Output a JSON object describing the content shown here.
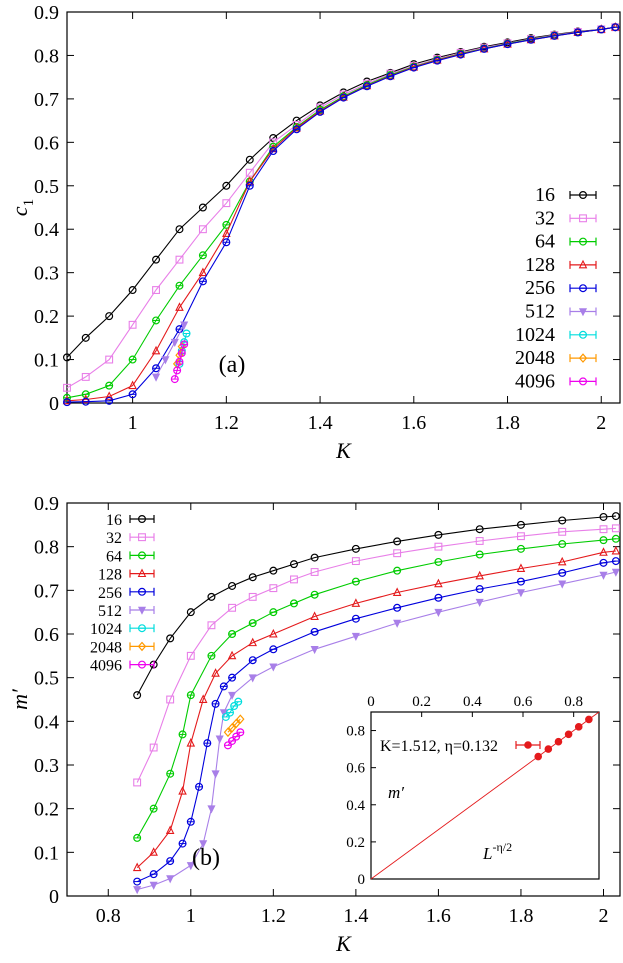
{
  "chart_data": [
    {
      "type": "line",
      "panel_label": "(a)",
      "xlabel": "K",
      "ylabel": "c",
      "ylabel_sub": "1",
      "xlim": [
        0.86,
        2.04
      ],
      "ylim": [
        0,
        0.9
      ],
      "xticks": [
        "1",
        "1.2",
        "1.4",
        "1.6",
        "1.8",
        "2"
      ],
      "xtick_values": [
        1,
        1.2,
        1.4,
        1.6,
        1.8,
        2
      ],
      "yticks": [
        "0",
        "0.1",
        "0.2",
        "0.3",
        "0.4",
        "0.5",
        "0.6",
        "0.7",
        "0.8",
        "0.9"
      ],
      "ytick_values": [
        0,
        0.1,
        0.2,
        0.3,
        0.4,
        0.5,
        0.6,
        0.7,
        0.8,
        0.9
      ],
      "legend_position": "right",
      "series": [
        {
          "name": "16",
          "color": "#000000",
          "marker": "circle",
          "x": [
            0.86,
            0.9,
            0.95,
            1.0,
            1.05,
            1.1,
            1.15,
            1.2,
            1.25,
            1.3,
            1.35,
            1.4,
            1.45,
            1.5,
            1.55,
            1.6,
            1.65,
            1.7,
            1.75,
            1.8,
            1.85,
            1.9,
            1.95,
            2.0,
            2.03
          ],
          "y": [
            0.105,
            0.15,
            0.2,
            0.26,
            0.33,
            0.4,
            0.45,
            0.5,
            0.56,
            0.61,
            0.65,
            0.685,
            0.715,
            0.74,
            0.76,
            0.78,
            0.795,
            0.808,
            0.82,
            0.83,
            0.84,
            0.848,
            0.855,
            0.86,
            0.865
          ]
        },
        {
          "name": "32",
          "color": "#e87fe8",
          "marker": "square",
          "x": [
            0.86,
            0.9,
            0.95,
            1.0,
            1.05,
            1.1,
            1.15,
            1.2,
            1.25,
            1.3,
            1.35,
            1.4,
            1.45,
            1.5,
            1.55,
            1.6,
            1.65,
            1.7,
            1.75,
            1.8,
            1.85,
            1.9,
            1.95,
            2.0,
            2.03
          ],
          "y": [
            0.035,
            0.06,
            0.1,
            0.18,
            0.26,
            0.33,
            0.4,
            0.46,
            0.53,
            0.6,
            0.64,
            0.68,
            0.71,
            0.735,
            0.758,
            0.776,
            0.792,
            0.806,
            0.818,
            0.828,
            0.838,
            0.847,
            0.854,
            0.86,
            0.865
          ]
        },
        {
          "name": "64",
          "color": "#00cc00",
          "marker": "circle-dot",
          "x": [
            0.86,
            0.9,
            0.95,
            1.0,
            1.05,
            1.1,
            1.15,
            1.2,
            1.25,
            1.3,
            1.35,
            1.4,
            1.45,
            1.5,
            1.55,
            1.6,
            1.65,
            1.7,
            1.75,
            1.8,
            1.85,
            1.9,
            1.95,
            2.0,
            2.03
          ],
          "y": [
            0.012,
            0.02,
            0.04,
            0.1,
            0.19,
            0.27,
            0.34,
            0.41,
            0.51,
            0.59,
            0.635,
            0.675,
            0.706,
            0.732,
            0.755,
            0.774,
            0.79,
            0.804,
            0.816,
            0.827,
            0.837,
            0.846,
            0.853,
            0.86,
            0.865
          ]
        },
        {
          "name": "128",
          "color": "#e41a1c",
          "marker": "triangle",
          "x": [
            0.86,
            0.9,
            0.95,
            1.0,
            1.05,
            1.1,
            1.15,
            1.2,
            1.25,
            1.3,
            1.35,
            1.4,
            1.45,
            1.5,
            1.55,
            1.6,
            1.65,
            1.7,
            1.75,
            1.8,
            1.85,
            1.9,
            1.95,
            2.0,
            2.03
          ],
          "y": [
            0.005,
            0.008,
            0.015,
            0.04,
            0.12,
            0.22,
            0.3,
            0.39,
            0.51,
            0.585,
            0.633,
            0.672,
            0.704,
            0.73,
            0.753,
            0.773,
            0.789,
            0.803,
            0.815,
            0.826,
            0.836,
            0.845,
            0.853,
            0.86,
            0.865
          ]
        },
        {
          "name": "256",
          "color": "#0000dd",
          "marker": "circle-dot",
          "x": [
            0.86,
            0.9,
            0.95,
            1.0,
            1.05,
            1.1,
            1.15,
            1.2,
            1.25,
            1.3,
            1.35,
            1.4,
            1.45,
            1.5,
            1.55,
            1.6,
            1.65,
            1.7,
            1.75,
            1.8,
            1.85,
            1.9,
            1.95,
            2.0,
            2.03
          ],
          "y": [
            0.002,
            0.003,
            0.005,
            0.02,
            0.08,
            0.17,
            0.28,
            0.37,
            0.5,
            0.58,
            0.63,
            0.67,
            0.703,
            0.729,
            0.752,
            0.772,
            0.788,
            0.802,
            0.815,
            0.826,
            0.836,
            0.845,
            0.853,
            0.86,
            0.865
          ]
        },
        {
          "name": "512",
          "color": "#a87fe8",
          "marker": "triangle-down",
          "x": [
            1.05,
            1.07,
            1.09,
            1.11
          ],
          "y": [
            0.06,
            0.1,
            0.14,
            0.18
          ]
        },
        {
          "name": "1024",
          "color": "#00dddd",
          "marker": "circle-dot",
          "x": [
            1.1,
            1.105,
            1.11,
            1.115
          ],
          "y": [
            0.09,
            0.12,
            0.14,
            0.16
          ]
        },
        {
          "name": "2048",
          "color": "#ff9900",
          "marker": "diamond",
          "x": [
            1.095,
            1.1,
            1.105
          ],
          "y": [
            0.09,
            0.11,
            0.13
          ]
        },
        {
          "name": "4096",
          "color": "#ee00ee",
          "marker": "circle-dot",
          "x": [
            1.09,
            1.095,
            1.1,
            1.105,
            1.11
          ],
          "y": [
            0.055,
            0.075,
            0.095,
            0.115,
            0.135
          ]
        }
      ]
    },
    {
      "type": "line",
      "panel_label": "(b)",
      "xlabel": "K",
      "ylabel": "m′",
      "xlim": [
        0.7,
        2.04
      ],
      "ylim": [
        0,
        0.9
      ],
      "xticks": [
        "0.8",
        "1",
        "1.2",
        "1.4",
        "1.6",
        "1.8",
        "2"
      ],
      "xtick_values": [
        0.8,
        1,
        1.2,
        1.4,
        1.6,
        1.8,
        2
      ],
      "yticks": [
        "0",
        "0.1",
        "0.2",
        "0.3",
        "0.4",
        "0.5",
        "0.6",
        "0.7",
        "0.8",
        "0.9"
      ],
      "ytick_values": [
        0,
        0.1,
        0.2,
        0.3,
        0.4,
        0.5,
        0.6,
        0.7,
        0.8,
        0.9
      ],
      "legend_position": "top-left",
      "series": [
        {
          "name": "16",
          "color": "#000000",
          "marker": "circle",
          "x": [
            0.87,
            0.91,
            0.95,
            1.0,
            1.05,
            1.1,
            1.15,
            1.2,
            1.25,
            1.3,
            1.4,
            1.5,
            1.6,
            1.7,
            1.8,
            1.9,
            2.0,
            2.03
          ],
          "y": [
            0.46,
            0.53,
            0.59,
            0.65,
            0.685,
            0.71,
            0.73,
            0.745,
            0.76,
            0.775,
            0.795,
            0.812,
            0.827,
            0.84,
            0.85,
            0.86,
            0.868,
            0.87
          ]
        },
        {
          "name": "32",
          "color": "#e87fe8",
          "marker": "square",
          "x": [
            0.87,
            0.91,
            0.95,
            1.0,
            1.05,
            1.1,
            1.15,
            1.2,
            1.25,
            1.3,
            1.4,
            1.5,
            1.6,
            1.7,
            1.8,
            1.9,
            2.0,
            2.03
          ],
          "y": [
            0.26,
            0.34,
            0.45,
            0.55,
            0.62,
            0.66,
            0.685,
            0.705,
            0.725,
            0.742,
            0.767,
            0.785,
            0.8,
            0.813,
            0.824,
            0.834,
            0.84,
            0.842
          ]
        },
        {
          "name": "64",
          "color": "#00cc00",
          "marker": "circle-dot",
          "x": [
            0.87,
            0.91,
            0.95,
            0.98,
            1.0,
            1.05,
            1.1,
            1.15,
            1.2,
            1.25,
            1.3,
            1.4,
            1.5,
            1.6,
            1.7,
            1.8,
            1.9,
            2.0,
            2.03
          ],
          "y": [
            0.133,
            0.2,
            0.28,
            0.37,
            0.46,
            0.55,
            0.6,
            0.625,
            0.65,
            0.67,
            0.69,
            0.72,
            0.745,
            0.765,
            0.782,
            0.795,
            0.806,
            0.815,
            0.818
          ]
        },
        {
          "name": "128",
          "color": "#e41a1c",
          "marker": "triangle",
          "x": [
            0.87,
            0.91,
            0.95,
            0.98,
            1.0,
            1.03,
            1.06,
            1.1,
            1.15,
            1.2,
            1.3,
            1.4,
            1.5,
            1.6,
            1.7,
            1.8,
            1.9,
            2.0,
            2.03
          ],
          "y": [
            0.065,
            0.1,
            0.15,
            0.24,
            0.35,
            0.45,
            0.51,
            0.55,
            0.58,
            0.6,
            0.64,
            0.67,
            0.695,
            0.715,
            0.733,
            0.75,
            0.765,
            0.787,
            0.79
          ]
        },
        {
          "name": "256",
          "color": "#0000dd",
          "marker": "circle-dot",
          "x": [
            0.87,
            0.91,
            0.95,
            0.98,
            1.0,
            1.02,
            1.04,
            1.06,
            1.08,
            1.1,
            1.15,
            1.2,
            1.3,
            1.4,
            1.5,
            1.6,
            1.7,
            1.8,
            1.9,
            2.0,
            2.03
          ],
          "y": [
            0.033,
            0.05,
            0.08,
            0.12,
            0.17,
            0.25,
            0.35,
            0.44,
            0.48,
            0.5,
            0.54,
            0.565,
            0.605,
            0.635,
            0.66,
            0.683,
            0.703,
            0.72,
            0.74,
            0.763,
            0.767
          ]
        },
        {
          "name": "512",
          "color": "#a87fe8",
          "marker": "triangle-down",
          "x": [
            0.87,
            0.91,
            0.95,
            1.0,
            1.03,
            1.05,
            1.06,
            1.07,
            1.08,
            1.1,
            1.15,
            1.2,
            1.3,
            1.4,
            1.5,
            1.6,
            1.7,
            1.8,
            1.9,
            2.0,
            2.03
          ],
          "y": [
            0.015,
            0.025,
            0.04,
            0.07,
            0.12,
            0.2,
            0.28,
            0.36,
            0.42,
            0.46,
            0.5,
            0.525,
            0.565,
            0.595,
            0.625,
            0.65,
            0.673,
            0.695,
            0.715,
            0.735,
            0.742
          ]
        },
        {
          "name": "1024",
          "color": "#00dddd",
          "marker": "circle-dot",
          "x": [
            1.085,
            1.095,
            1.105,
            1.115
          ],
          "y": [
            0.41,
            0.42,
            0.435,
            0.445
          ]
        },
        {
          "name": "2048",
          "color": "#ff9900",
          "marker": "diamond",
          "x": [
            1.09,
            1.1,
            1.11,
            1.12
          ],
          "y": [
            0.375,
            0.385,
            0.395,
            0.405
          ]
        },
        {
          "name": "4096",
          "color": "#ee00ee",
          "marker": "circle-dot",
          "x": [
            1.09,
            1.1,
            1.11,
            1.12
          ],
          "y": [
            0.345,
            0.355,
            0.365,
            0.375
          ]
        }
      ],
      "inset": {
        "label": "K=1.512, η=0.132",
        "xlabel": "L",
        "xlabel_sup": "-η/2",
        "ylabel": "m′",
        "xlim": [
          0,
          0.9
        ],
        "ylim": [
          0,
          0.9
        ],
        "xticks": [
          "0",
          "0.2",
          "0.4",
          "0.6",
          "0.8"
        ],
        "xtick_values": [
          0,
          0.2,
          0.4,
          0.6,
          0.8
        ],
        "yticks": [
          "0",
          "0.2",
          "0.4",
          "0.6",
          "0.8"
        ],
        "ytick_values": [
          0,
          0.2,
          0.4,
          0.6,
          0.8
        ],
        "color": "#e41a1c",
        "fit_line": {
          "x": [
            0,
            0.9
          ],
          "y": [
            0,
            0.9
          ]
        },
        "points": {
          "x": [
            0.66,
            0.7,
            0.74,
            0.78,
            0.82,
            0.86
          ],
          "y": [
            0.66,
            0.7,
            0.74,
            0.78,
            0.82,
            0.86
          ]
        }
      }
    }
  ]
}
